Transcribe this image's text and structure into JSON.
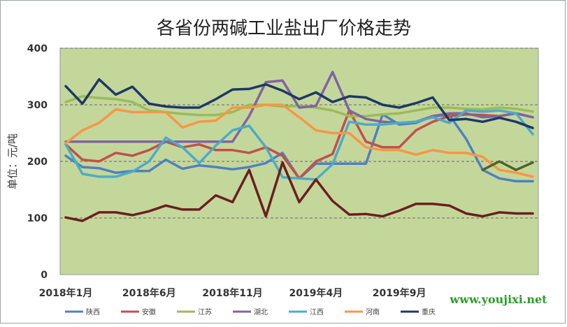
{
  "chart_data": {
    "type": "line",
    "title": "各省份两碱工业盐出厂价格走势",
    "ylabel": "单位：元/吨",
    "xlabel": "",
    "ylim": [
      0,
      400
    ],
    "yticks": [
      0,
      100,
      200,
      300,
      400
    ],
    "grid": true,
    "legend_position": "bottom",
    "x": [
      "2018-01",
      "2018-02",
      "2018-03",
      "2018-04",
      "2018-05",
      "2018-06",
      "2018-07",
      "2018-08",
      "2018-09",
      "2018-10",
      "2018-11",
      "2018-12",
      "2019-01",
      "2019-02",
      "2019-03",
      "2019-04",
      "2019-05",
      "2019-06",
      "2019-07",
      "2019-08",
      "2019-09",
      "2019-10",
      "2019-11",
      "2019-12",
      "2020-01",
      "2020-02",
      "2020-03",
      "2020-04",
      "2020-05"
    ],
    "xtick_labels": [
      {
        "index": 0,
        "label": "2018年1月"
      },
      {
        "index": 5,
        "label": "2018年6月"
      },
      {
        "index": 10,
        "label": "2018年11月"
      },
      {
        "index": 15,
        "label": "2019年4月"
      },
      {
        "index": 20,
        "label": "2019年9月"
      }
    ],
    "series": [
      {
        "name": "陕西",
        "color": "#4f81bd",
        "values": [
          210,
          190,
          188,
          180,
          183,
          183,
          203,
          187,
          193,
          190,
          186,
          190,
          197,
          215,
          170,
          196,
          196,
          196,
          196,
          283,
          265,
          268,
          280,
          282,
          240,
          185,
          170,
          165,
          165
        ]
      },
      {
        "name": "安徽",
        "color": "#c0504d",
        "values": [
          230,
          203,
          200,
          215,
          210,
          220,
          235,
          225,
          230,
          220,
          220,
          215,
          225,
          210,
          170,
          200,
          213,
          290,
          235,
          225,
          225,
          255,
          270,
          280,
          283,
          282,
          280,
          285,
          278
        ]
      },
      {
        "name": "江苏",
        "color": "#9bbb59",
        "values": [
          305,
          315,
          312,
          310,
          305,
          290,
          287,
          284,
          282,
          282,
          287,
          300,
          300,
          297,
          298,
          295,
          290,
          280,
          280,
          283,
          285,
          290,
          295,
          295,
          293,
          292,
          295,
          293,
          288
        ]
      },
      {
        "name": "湖北",
        "color": "#8064a2",
        "values": [
          235,
          235,
          235,
          235,
          235,
          235,
          235,
          235,
          235,
          235,
          235,
          280,
          340,
          343,
          295,
          298,
          358,
          290,
          275,
          270,
          268,
          270,
          280,
          285,
          285,
          278,
          280,
          285,
          278
        ]
      },
      {
        "name": "江西",
        "color": "#4bacc6",
        "values": [
          230,
          178,
          173,
          173,
          182,
          200,
          242,
          225,
          197,
          228,
          255,
          263,
          225,
          172,
          170,
          168,
          195,
          270,
          265,
          265,
          268,
          270,
          278,
          268,
          290,
          288,
          290,
          285,
          248
        ]
      },
      {
        "name": "河南",
        "color": "#f79646",
        "values": [
          232,
          255,
          268,
          292,
          287,
          287,
          287,
          260,
          270,
          272,
          295,
          295,
          300,
          300,
          278,
          255,
          250,
          250,
          225,
          220,
          220,
          212,
          220,
          215,
          215,
          208,
          185,
          180,
          173
        ]
      },
      {
        "name": "重庆",
        "color": "#1f3864",
        "values": [
          333,
          302,
          345,
          318,
          332,
          302,
          297,
          295,
          295,
          310,
          327,
          328,
          336,
          325,
          310,
          322,
          305,
          315,
          313,
          300,
          295,
          303,
          313,
          273,
          275,
          270,
          277,
          270,
          259
        ]
      },
      {
        "name": "",
        "color": "#6b1f1f",
        "values": [
          101,
          95,
          110,
          110,
          105,
          112,
          122,
          115,
          115,
          140,
          128,
          185,
          103,
          198,
          128,
          168,
          130,
          106,
          107,
          103,
          113,
          125,
          125,
          122,
          108,
          103,
          110,
          108,
          108
        ]
      },
      {
        "name": "",
        "color": "#4f6228",
        "values": [
          null,
          null,
          null,
          null,
          null,
          null,
          null,
          null,
          null,
          null,
          null,
          null,
          null,
          null,
          null,
          null,
          null,
          null,
          null,
          null,
          null,
          null,
          null,
          null,
          null,
          185,
          200,
          185,
          198
        ]
      }
    ]
  },
  "watermark": "www.youjixi.net"
}
